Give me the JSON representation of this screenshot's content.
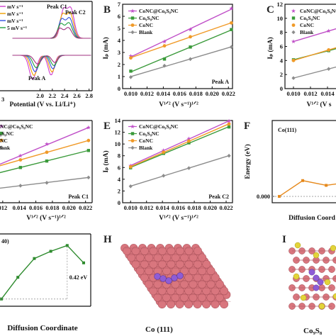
{
  "colors": {
    "conc_cos": "#c050c8",
    "cos": "#3a9a3a",
    "conc": "#f09a28",
    "blank": "#8c8c8c",
    "atom_co": "#d9767e",
    "atom_li": "#8e5cd6",
    "atom_s": "#e3d43a",
    "line_orange": "#e6891c",
    "line_green": "#2e8b2e"
  },
  "chart_data": [
    {
      "panel": "A",
      "type": "line",
      "partial": true,
      "xlabel": "Potential (V vs. Li/Li⁺)",
      "xlim": [
        1.3,
        2.85
      ],
      "xticks": [
        "2.0",
        "2.2",
        "2.4",
        "2.6",
        "2.8"
      ],
      "legend": [
        "mV s⁻¹",
        "mV s⁻¹",
        "mV s⁻¹",
        "5 mV s⁻¹"
      ],
      "peak_labels": [
        "Peak C1",
        "Peak C2",
        "Peak A"
      ],
      "series_colors": [
        "#d040d0",
        "#f0a000",
        "#3050e0",
        "#20a040",
        "#a03080"
      ]
    },
    {
      "panel": "B",
      "type": "scatter",
      "title": "Peak A",
      "xlabel": "V¹ᐟ² (V s⁻¹)¹ᐟ²",
      "ylabel": "Iₚ (mA)",
      "xlim": [
        0.009,
        0.0225
      ],
      "ylim": [
        0,
        7
      ],
      "xticks": [
        "0.010",
        "0.012",
        "0.014",
        "0.016",
        "0.018",
        "0.020",
        "0.022"
      ],
      "yticks": [
        "0",
        "1",
        "2",
        "3",
        "4",
        "5",
        "6",
        "7"
      ],
      "legend": [
        "CoNC@Co₉S₈NC",
        "Co₉S₈NC",
        "CoNC",
        "Blank"
      ],
      "x": [
        0.01,
        0.01414,
        0.01732,
        0.02236
      ],
      "series": [
        {
          "name": "CoNC@Co₉S₈NC",
          "values": [
            2.7,
            3.9,
            4.9,
            6.65
          ]
        },
        {
          "name": "Co₉S₈NC",
          "values": [
            1.45,
            2.45,
            3.45,
            4.9
          ]
        },
        {
          "name": "CoNC",
          "values": [
            2.55,
            3.55,
            4.3,
            5.45
          ]
        },
        {
          "name": "Blank",
          "values": [
            0.95,
            1.9,
            2.45,
            3.45
          ]
        }
      ]
    },
    {
      "panel": "C",
      "type": "scatter",
      "partial": true,
      "xlabel": "V¹ᐟ² (V s",
      "ylabel": "Iₚ (mA)",
      "xlim": [
        0.009,
        0.0155
      ],
      "ylim": [
        0,
        12
      ],
      "xticks": [
        "0.010",
        "0.012",
        "0.014"
      ],
      "yticks": [
        "0",
        "2",
        "4",
        "6",
        "8",
        "10",
        "12"
      ],
      "legend": [
        "CoNC@Co₉S₈NC",
        "Co₉S₈NC",
        "CoNC",
        "Blank"
      ],
      "x": [
        0.01,
        0.01414
      ],
      "series": [
        {
          "name": "CoNC@Co₉S₈NC",
          "values": [
            6.7,
            8.2
          ]
        },
        {
          "name": "Co₉S₈NC",
          "values": [
            4.1,
            5.4
          ]
        },
        {
          "name": "CoNC",
          "values": [
            4.0,
            5.5
          ]
        },
        {
          "name": "Blank",
          "values": [
            1.5,
            2.8
          ]
        }
      ]
    },
    {
      "panel": "D",
      "type": "scatter",
      "partial": true,
      "title": "Peak C1",
      "xlabel": "V¹ᐟ² (V s⁻¹)¹ᐟ²",
      "xlim": [
        0.0115,
        0.0228
      ],
      "ylim": [
        0,
        14
      ],
      "xticks": [
        "012",
        "0.014",
        "0.016",
        "0.018",
        "0.020",
        "0.022"
      ],
      "legend": [
        "NC@Co₉S₈NC",
        "₉S₈NC",
        "NC",
        "lank"
      ],
      "x": [
        0.01414,
        0.01732,
        0.02236
      ],
      "series": [
        {
          "name": "NC@Co₉S₈NC",
          "values": [
            8.0,
            10.0,
            12.8
          ]
        },
        {
          "name": "₉S₈NC",
          "values": [
            6.0,
            7.1,
            8.9
          ]
        },
        {
          "name": "NC",
          "values": [
            7.3,
            8.6,
            10.6
          ]
        },
        {
          "name": "lank",
          "values": [
            2.9,
            3.4,
            4.3
          ]
        }
      ]
    },
    {
      "panel": "E",
      "type": "scatter",
      "title": "Peak C2",
      "xlabel": "V¹ᐟ² (V s⁻¹)¹ᐟ²",
      "ylabel": "Iₚ (mA)",
      "xlim": [
        0.009,
        0.0228
      ],
      "ylim": [
        0,
        14
      ],
      "xticks": [
        "0.010",
        "0.012",
        "0.014",
        "0.016",
        "0.018",
        "0.020",
        "0.022"
      ],
      "yticks": [
        "0",
        "2",
        "4",
        "6",
        "8",
        "10",
        "12",
        "14"
      ],
      "legend": [
        "CoNC@Co₉S₈NC",
        "Co₉S₈NC",
        "CoNC",
        "Blank"
      ],
      "x": [
        0.01,
        0.01414,
        0.01732,
        0.02236
      ],
      "series": [
        {
          "name": "CoNC@Co₉S₈NC",
          "values": [
            6.3,
            8.9,
            10.9,
            13.9
          ]
        },
        {
          "name": "Co₉S₈NC",
          "values": [
            5.95,
            8.4,
            10.2,
            12.9
          ]
        },
        {
          "name": "CoNC",
          "values": [
            6.1,
            8.6,
            10.5,
            13.4
          ]
        },
        {
          "name": "Blank",
          "values": [
            2.8,
            4.6,
            5.9,
            8.0
          ]
        }
      ]
    },
    {
      "panel": "F",
      "type": "line",
      "partial": true,
      "title": "Co(111)",
      "xlabel": "Diffusion Coord",
      "ylabel": "Energy (eV)",
      "ylim": [
        -0.02,
        0.24
      ],
      "yticks": [
        "0.000",
        "0.05",
        "0.10",
        "0.15",
        "0.20"
      ],
      "x": [
        0,
        1,
        2,
        2.5
      ],
      "values": [
        0.0,
        0.05,
        0.035,
        0.04
      ]
    },
    {
      "panel": "G",
      "type": "line",
      "partial": true,
      "title": "40)",
      "xlabel": "Diffusion Coordinate",
      "annotation": "0.42 eV",
      "x": [
        0,
        1,
        2,
        3,
        4,
        5
      ],
      "values": [
        0.05,
        0.2,
        0.33,
        0.38,
        0.42,
        0.3
      ]
    }
  ],
  "panels": {
    "A": {
      "label": ""
    },
    "B": {
      "label": "B"
    },
    "C": {
      "label": "C"
    },
    "D": {
      "label": ""
    },
    "E": {
      "label": "E"
    },
    "F": {
      "label": "F"
    },
    "G": {
      "label": ""
    },
    "H": {
      "label": "H",
      "caption": "Co (111)"
    },
    "I": {
      "label": "I",
      "caption": "Co₉S₈"
    }
  },
  "panelA_misc": {
    "tick_left": "3"
  }
}
